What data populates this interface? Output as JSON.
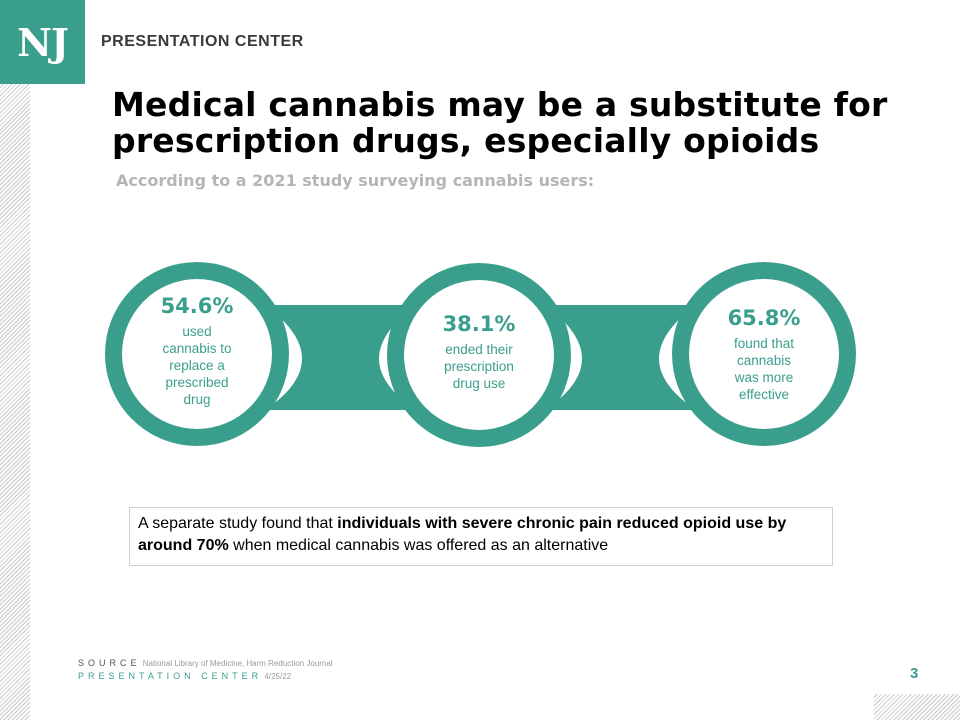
{
  "header": {
    "logo": "NJ",
    "brand": "PRESENTATION CENTER"
  },
  "slide": {
    "title_line1": "Medical cannabis may be a substitute for",
    "title_line2": "prescription drugs, especially opioids",
    "subtitle": "According to a 2021 study surveying cannabis users:"
  },
  "stats": [
    {
      "value": "54.6%",
      "desc": [
        "used",
        "cannabis to",
        "replace a",
        "prescribed",
        "drug"
      ]
    },
    {
      "value": "38.1%",
      "desc": [
        "ended their",
        "prescription",
        "drug use"
      ]
    },
    {
      "value": "65.8%",
      "desc": [
        "found that",
        "cannabis",
        "was more",
        "effective"
      ]
    }
  ],
  "callout": {
    "prefix": "A separate study found that ",
    "bold": "individuals with severe chronic pain reduced opioid use by around 70%",
    "suffix": " when medical cannabis was offered as an alternative"
  },
  "footer": {
    "source_label": "SOURCE",
    "source_text": "National Library of Medicine, Harm Reduction Journal",
    "center_label": "PRESENTATION CENTER",
    "date": "4/25/22",
    "page_number": "3"
  },
  "colors": {
    "accent": "#3a9e8d",
    "subtitle": "#b5b5b5"
  }
}
